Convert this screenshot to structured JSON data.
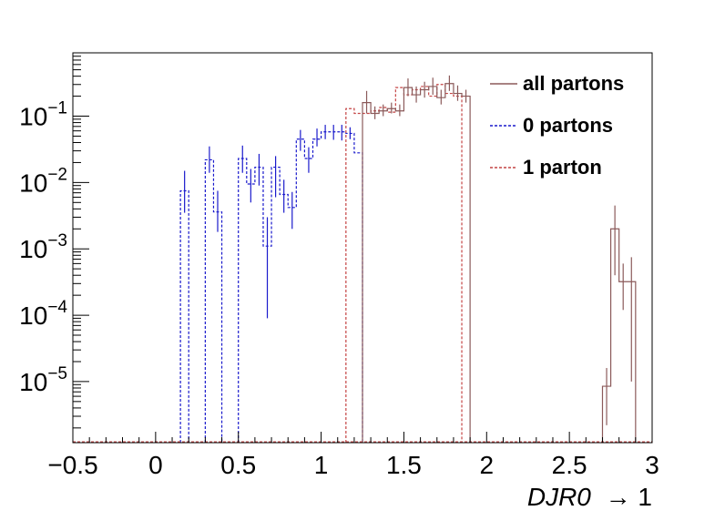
{
  "chart_data": {
    "type": "histogram",
    "xlabel_var": "DJR0",
    "xlabel_rest": "→ 1",
    "xlim": [
      -0.5,
      3.0
    ],
    "ylim": [
      1.2e-06,
      0.9
    ],
    "yscale": "log",
    "x_tick_labels": [
      "−0.5",
      "0",
      "0.5",
      "1",
      "1.5",
      "2",
      "2.5",
      "3"
    ],
    "x_tick_values": [
      -0.5,
      0,
      0.5,
      1,
      1.5,
      2,
      2.5,
      3
    ],
    "y_tick_labels": [
      {
        "base": "10",
        "exp": "−5",
        "value": 1e-05
      },
      {
        "base": "10",
        "exp": "−4",
        "value": 0.0001
      },
      {
        "base": "10",
        "exp": "−3",
        "value": 0.001
      },
      {
        "base": "10",
        "exp": "−2",
        "value": 0.01
      },
      {
        "base": "10",
        "exp": "−1",
        "value": 0.1
      }
    ],
    "bin_width": 0.05,
    "legend": {
      "position": "top-right",
      "entries": [
        {
          "label": "all partons",
          "color": "#8b5a5a",
          "style": "solid"
        },
        {
          "label": "0 partons",
          "color": "#1a1acc",
          "style": "dashed"
        },
        {
          "label": "1 parton",
          "color": "#c44444",
          "style": "dashed"
        }
      ]
    },
    "series": [
      {
        "name": "0 partons",
        "color": "#1a1acc",
        "style": "dashed",
        "error_bars": true,
        "bins": [
          {
            "x0": 0.15,
            "y": 0.0075,
            "err": [
              0.0035,
              0.015
            ]
          },
          {
            "x0": 0.3,
            "y": 0.022,
            "err": [
              0.014,
              0.035
            ]
          },
          {
            "x0": 0.35,
            "y": 0.0036,
            "err": [
              0.0018,
              0.0075
            ]
          },
          {
            "x0": 0.5,
            "y": 0.023,
            "err": [
              0.014,
              0.036
            ]
          },
          {
            "x0": 0.55,
            "y": 0.0095,
            "err": [
              0.005,
              0.016
            ]
          },
          {
            "x0": 0.6,
            "y": 0.017,
            "err": [
              0.009,
              0.027
            ]
          },
          {
            "x0": 0.65,
            "y": 0.0011,
            "err": [
              9e-05,
              0.003
            ]
          },
          {
            "x0": 0.7,
            "y": 0.017,
            "err": [
              0.006,
              0.025
            ]
          },
          {
            "x0": 0.75,
            "y": 0.0066,
            "err": [
              0.0035,
              0.011
            ]
          },
          {
            "x0": 0.8,
            "y": 0.0042,
            "err": [
              0.002,
              0.0072
            ]
          },
          {
            "x0": 0.85,
            "y": 0.045,
            "err": [
              0.03,
              0.062
            ]
          },
          {
            "x0": 0.9,
            "y": 0.023,
            "err": [
              0.014,
              0.034
            ]
          },
          {
            "x0": 0.95,
            "y": 0.045,
            "err": [
              0.035,
              0.065
            ]
          },
          {
            "x0": 1.0,
            "y": 0.058,
            "err": [
              0.045,
              0.074
            ]
          },
          {
            "x0": 1.05,
            "y": 0.058,
            "err": [
              0.044,
              0.074
            ]
          },
          {
            "x0": 1.1,
            "y": 0.058,
            "err": [
              0.043,
              0.074
            ]
          },
          {
            "x0": 1.15,
            "y": 0.055,
            "err": [
              0.045,
              0.068
            ]
          },
          {
            "x0": 1.2,
            "y": 0.028,
            "err": null
          }
        ]
      },
      {
        "name": "1 parton",
        "color": "#c44444",
        "style": "dashed",
        "error_bars": false,
        "bins": [
          {
            "x0": 1.15,
            "y": 0.13
          },
          {
            "x0": 1.2,
            "y": 0.11
          },
          {
            "x0": 1.25,
            "y": 0.11
          },
          {
            "x0": 1.3,
            "y": 0.12
          },
          {
            "x0": 1.35,
            "y": 0.135
          },
          {
            "x0": 1.4,
            "y": 0.115
          },
          {
            "x0": 1.45,
            "y": 0.27
          },
          {
            "x0": 1.5,
            "y": 0.21
          },
          {
            "x0": 1.55,
            "y": 0.25
          },
          {
            "x0": 1.6,
            "y": 0.28
          },
          {
            "x0": 1.65,
            "y": 0.2
          },
          {
            "x0": 1.7,
            "y": 0.3
          },
          {
            "x0": 1.75,
            "y": 0.22
          },
          {
            "x0": 1.8,
            "y": 0.2
          }
        ]
      },
      {
        "name": "all partons",
        "color": "#8b5a5a",
        "style": "solid",
        "error_bars": true,
        "bins": [
          {
            "x0": 1.25,
            "y": 0.16,
            "err": [
              0.11,
              0.24
            ]
          },
          {
            "x0": 1.3,
            "y": 0.11,
            "err": [
              0.09,
              0.14
            ]
          },
          {
            "x0": 1.35,
            "y": 0.12,
            "err": [
              0.1,
              0.15
            ]
          },
          {
            "x0": 1.4,
            "y": 0.13,
            "err": [
              0.11,
              0.16
            ]
          },
          {
            "x0": 1.45,
            "y": 0.12,
            "err": [
              0.1,
              0.15
            ]
          },
          {
            "x0": 1.5,
            "y": 0.27,
            "err": [
              0.2,
              0.37
            ]
          },
          {
            "x0": 1.55,
            "y": 0.21,
            "err": [
              0.16,
              0.28
            ]
          },
          {
            "x0": 1.6,
            "y": 0.25,
            "err": [
              0.19,
              0.33
            ]
          },
          {
            "x0": 1.65,
            "y": 0.28,
            "err": [
              0.21,
              0.38
            ]
          },
          {
            "x0": 1.7,
            "y": 0.19,
            "err": [
              0.15,
              0.25
            ]
          },
          {
            "x0": 1.75,
            "y": 0.31,
            "err": [
              0.24,
              0.41
            ]
          },
          {
            "x0": 1.8,
            "y": 0.22,
            "err": [
              0.17,
              0.29
            ]
          },
          {
            "x0": 1.85,
            "y": 0.2,
            "err": [
              0.16,
              0.25
            ]
          },
          {
            "x0": 2.7,
            "y": 8.5e-06,
            "err": [
              2.2e-06,
              1.6e-05
            ]
          },
          {
            "x0": 2.75,
            "y": 0.002,
            "err": [
              0.0004,
              0.0045
            ]
          },
          {
            "x0": 2.8,
            "y": 0.00032,
            "err": [
              0.00012,
              0.0006
            ]
          },
          {
            "x0": 2.85,
            "y": 0.00032,
            "err": [
              1e-05,
              0.00075
            ]
          }
        ]
      }
    ]
  }
}
